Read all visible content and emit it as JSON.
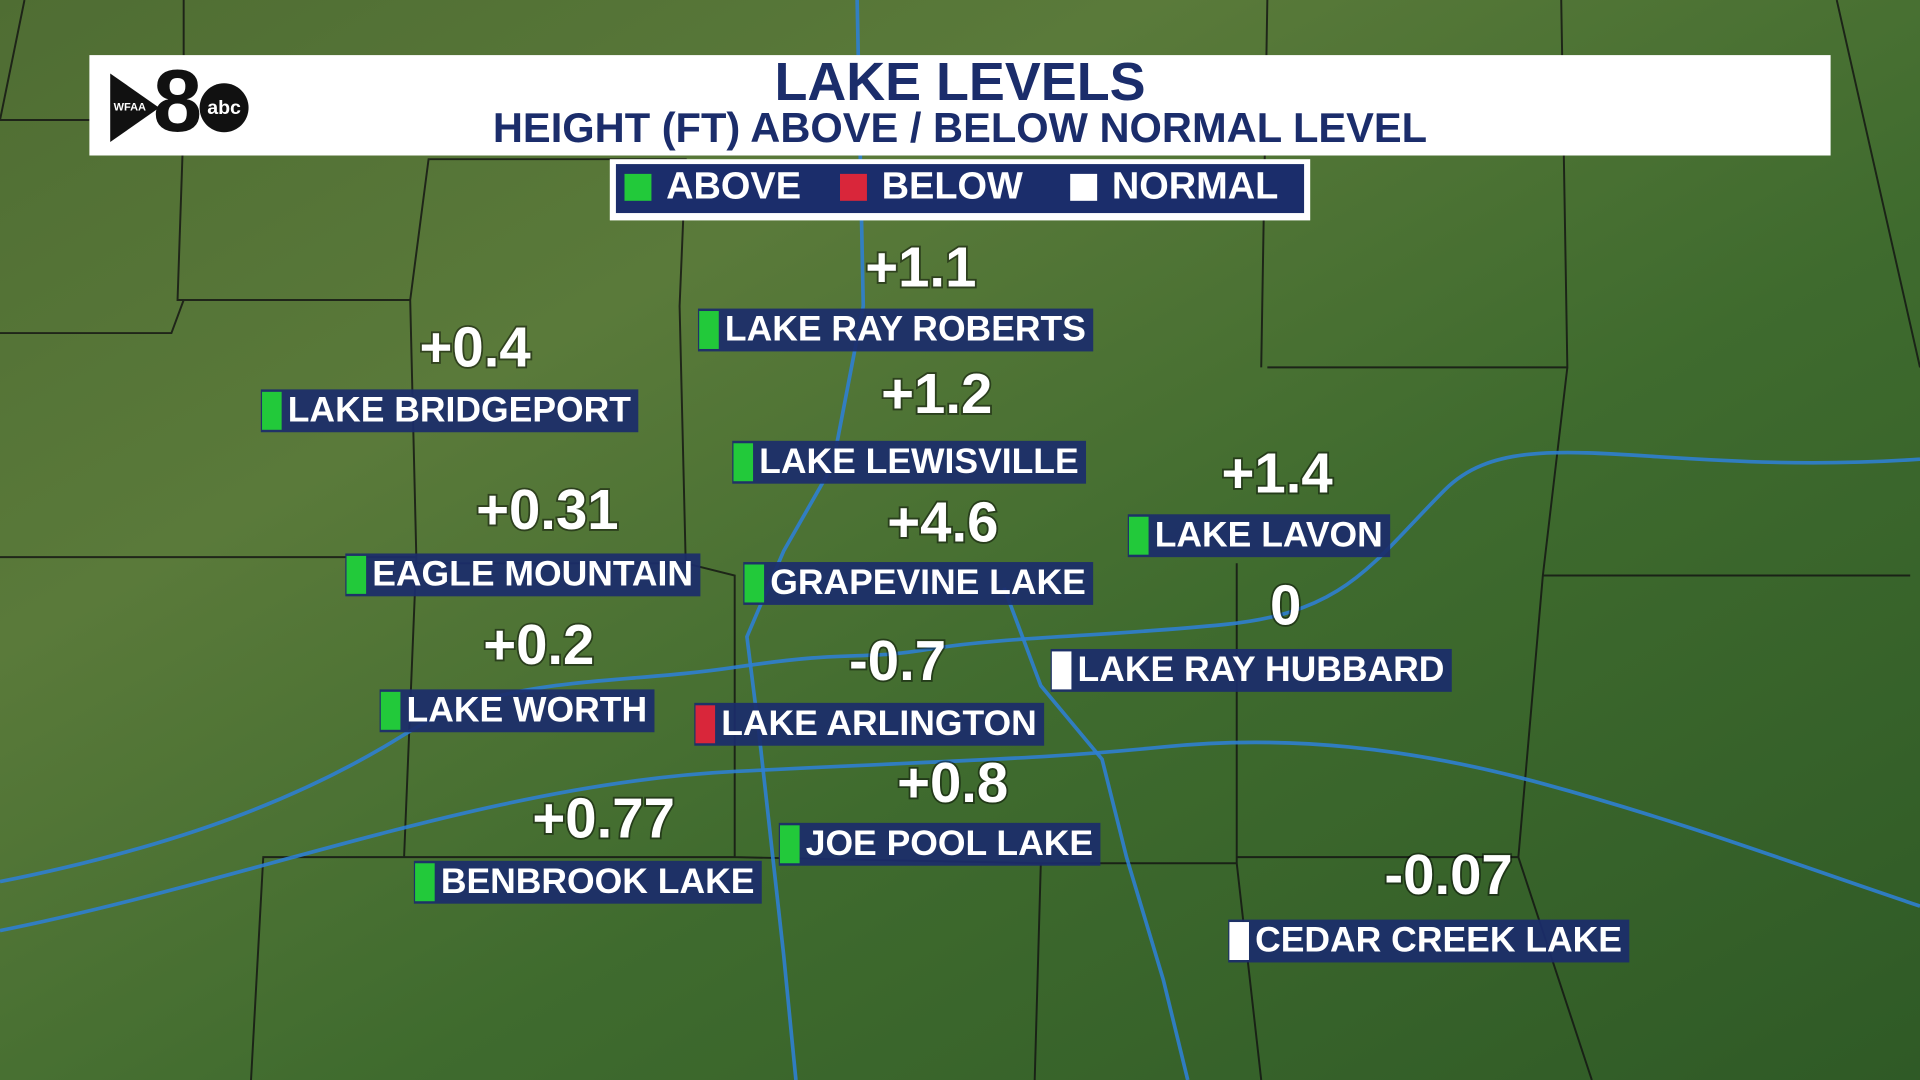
{
  "header": {
    "title": "LAKE LEVELS",
    "subtitle": "HEIGHT (FT) ABOVE / BELOW NORMAL LEVEL",
    "logo": {
      "station": "WFAA",
      "number": "8",
      "network": "abc"
    }
  },
  "legend": [
    {
      "label": "ABOVE",
      "color": "#22c93a"
    },
    {
      "label": "BELOW",
      "color": "#d9263a"
    },
    {
      "label": "NORMAL",
      "color": "#ffffff"
    }
  ],
  "lakes": [
    {
      "name": "LAKE RAY ROBERTS",
      "value": "+1.1",
      "color": "#22c93a"
    },
    {
      "name": "LAKE BRIDGEPORT",
      "value": "+0.4",
      "color": "#22c93a"
    },
    {
      "name": "LAKE LEWISVILLE",
      "value": "+1.2",
      "color": "#22c93a"
    },
    {
      "name": "LAKE LAVON",
      "value": "+1.4",
      "color": "#22c93a"
    },
    {
      "name": "EAGLE MOUNTAIN",
      "value": "+0.31",
      "color": "#22c93a"
    },
    {
      "name": "GRAPEVINE  LAKE",
      "value": "+4.6",
      "color": "#22c93a"
    },
    {
      "name": "LAKE RAY HUBBARD",
      "value": "0",
      "color": "#ffffff"
    },
    {
      "name": "LAKE WORTH",
      "value": "+0.2",
      "color": "#22c93a"
    },
    {
      "name": "LAKE ARLINGTON",
      "value": "-0.7",
      "color": "#d9263a"
    },
    {
      "name": "JOE POOL LAKE",
      "value": "+0.8",
      "color": "#22c93a"
    },
    {
      "name": "BENBROOK LAKE",
      "value": "+0.77",
      "color": "#22c93a"
    },
    {
      "name": "CEDAR CREEK LAKE",
      "value": "-0.07",
      "color": "#ffffff"
    }
  ]
}
